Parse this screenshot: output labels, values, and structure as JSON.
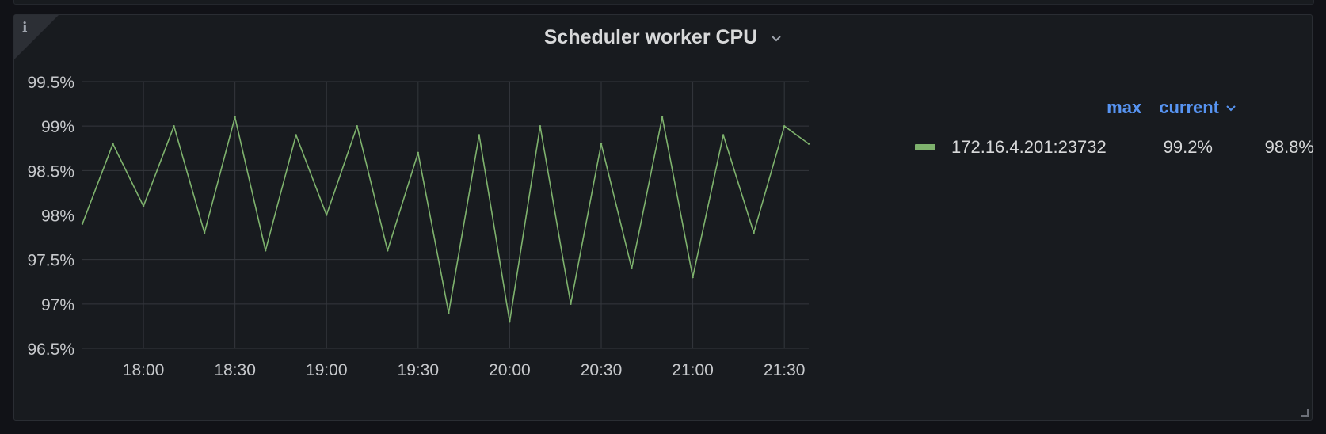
{
  "panel": {
    "title": "Scheduler worker CPU",
    "info_icon": "info-icon",
    "title_menu_icon": "chevron-down-icon"
  },
  "legend": {
    "headers": {
      "max": "max",
      "current": "current"
    },
    "series": [
      {
        "name": "172.16.4.201:23732",
        "max": "99.2%",
        "current": "98.8%",
        "color": "#7eb26d"
      }
    ]
  },
  "chart_data": {
    "type": "line",
    "title": "Scheduler worker CPU",
    "xlabel": "",
    "ylabel": "",
    "x_range": [
      "17:40",
      "21:38"
    ],
    "xticks": [
      "18:00",
      "18:30",
      "19:00",
      "19:30",
      "20:00",
      "20:30",
      "21:00",
      "21:30"
    ],
    "ylim": [
      96.5,
      99.5
    ],
    "yticks": [
      "96.5%",
      "97%",
      "97.5%",
      "98%",
      "98.5%",
      "99%",
      "99.5%"
    ],
    "grid": true,
    "legend_position": "right",
    "series": [
      {
        "name": "172.16.4.201:23732",
        "color": "#7eb26d",
        "x": [
          "17:40",
          "17:50",
          "18:00",
          "18:10",
          "18:20",
          "18:30",
          "18:40",
          "18:50",
          "19:00",
          "19:10",
          "19:20",
          "19:30",
          "19:40",
          "19:50",
          "20:00",
          "20:10",
          "20:20",
          "20:30",
          "20:40",
          "20:50",
          "21:00",
          "21:10",
          "21:20",
          "21:30",
          "21:38"
        ],
        "values": [
          97.9,
          98.8,
          98.1,
          99.0,
          97.8,
          99.1,
          97.6,
          98.9,
          98.0,
          99.0,
          97.6,
          98.7,
          96.9,
          98.9,
          96.8,
          99.0,
          97.0,
          98.8,
          97.4,
          99.1,
          97.3,
          98.9,
          97.8,
          99.0,
          98.8
        ]
      }
    ]
  }
}
